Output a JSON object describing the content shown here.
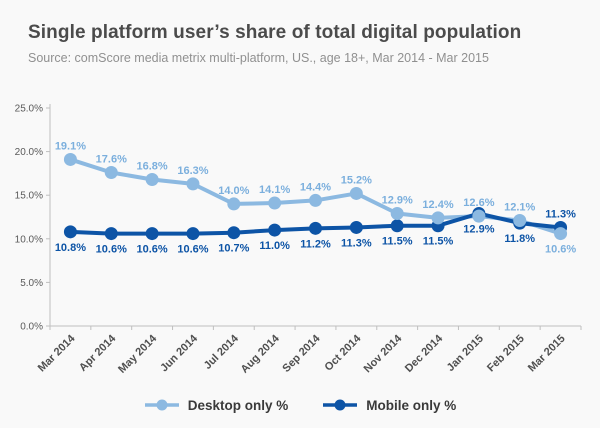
{
  "header": {
    "title": "Single platform user’s share of total digital population",
    "subtitle": "Source: comScore media metrix multi-platform, US., age 18+, Mar 2014 - Mar 2015"
  },
  "chart_data": {
    "type": "line",
    "title": "Single platform user’s share of total digital population",
    "categories": [
      "Mar 2014",
      "Apr 2014",
      "May 2014",
      "Jun 2014",
      "Jul 2014",
      "Aug 2014",
      "Sep 2014",
      "Oct 2014",
      "Nov 2014",
      "Dec 2014",
      "Jan 2015",
      "Feb 2015",
      "Mar 2015"
    ],
    "series": [
      {
        "name": "Desktop only %",
        "color": "#8cb9e1",
        "label_color": "#7bafdd",
        "values": [
          19.1,
          17.6,
          16.8,
          16.3,
          14.0,
          14.1,
          14.4,
          15.2,
          12.9,
          12.4,
          12.6,
          12.1,
          10.6
        ],
        "label_positions": [
          "above",
          "above",
          "above",
          "above",
          "above",
          "above",
          "above",
          "above",
          "above",
          "above",
          "above",
          "above",
          "below"
        ]
      },
      {
        "name": "Mobile only %",
        "color": "#0d54a6",
        "label_color": "#0d54a6",
        "values": [
          10.8,
          10.6,
          10.6,
          10.6,
          10.7,
          11.0,
          11.2,
          11.3,
          11.5,
          11.5,
          12.9,
          11.8,
          11.3
        ],
        "label_positions": [
          "below",
          "below",
          "below",
          "below",
          "below",
          "below",
          "below",
          "below",
          "below",
          "below",
          "below",
          "below",
          "above"
        ]
      }
    ],
    "ylim": [
      0,
      25
    ],
    "yticks": [
      0,
      5,
      10,
      15,
      20,
      25
    ],
    "ytick_labels": [
      "0.0%",
      "5.0%",
      "10.0%",
      "15.0%",
      "20.0%",
      "25.0%"
    ],
    "grid": false,
    "legend_position": "bottom",
    "axis_color": "#bfbfbf",
    "xtick_label_color": "#4f4f4f",
    "ytick_label_color": "#5a5a5a"
  },
  "legend": {
    "items": [
      {
        "label": "Desktop only %",
        "color": "#8cb9e1"
      },
      {
        "label": "Mobile only %",
        "color": "#0d54a6"
      }
    ]
  }
}
